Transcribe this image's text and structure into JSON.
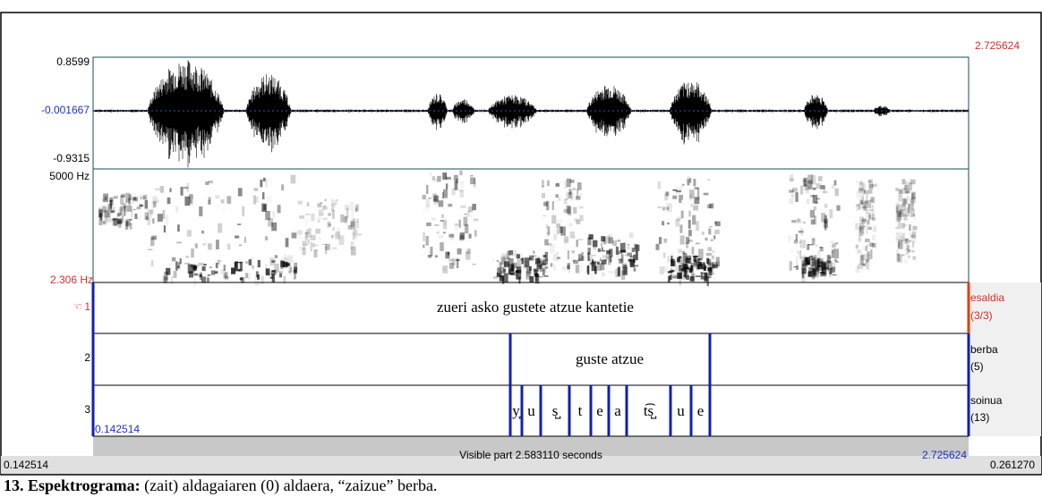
{
  "praat": {
    "time_end_top": "2.725624",
    "waveform": {
      "max": "0.8599",
      "zero": "-0.001667",
      "min": "-0.9315"
    },
    "spectrogram": {
      "top": "5000 Hz",
      "bottom": "2.306 Hz"
    },
    "tiers": [
      {
        "number": "1",
        "name": "esaldia",
        "count": "(3/3)",
        "intervals": [
          "zueri asko gustete atzue kantetie"
        ]
      },
      {
        "number": "2",
        "name": "berba",
        "count": "(5)",
        "intervals": [
          "guste atzue"
        ]
      },
      {
        "number": "3",
        "name": "soinua",
        "count": "(13)",
        "intervals": [
          "y̞",
          "u",
          "s̺",
          "t",
          "e",
          "a",
          "t͡s̺",
          "u",
          "e"
        ]
      }
    ],
    "bottom": {
      "left_outer": "0.142514",
      "left": "0.142514",
      "visible": "Visible part 2.583110 seconds",
      "right": "2.725624",
      "right_outer": "0.261270"
    }
  },
  "caption": {
    "label": "13. Espektrograma:",
    "text": " (zait) aldagaiaren (0) aldaera, “zaizue” berba."
  }
}
